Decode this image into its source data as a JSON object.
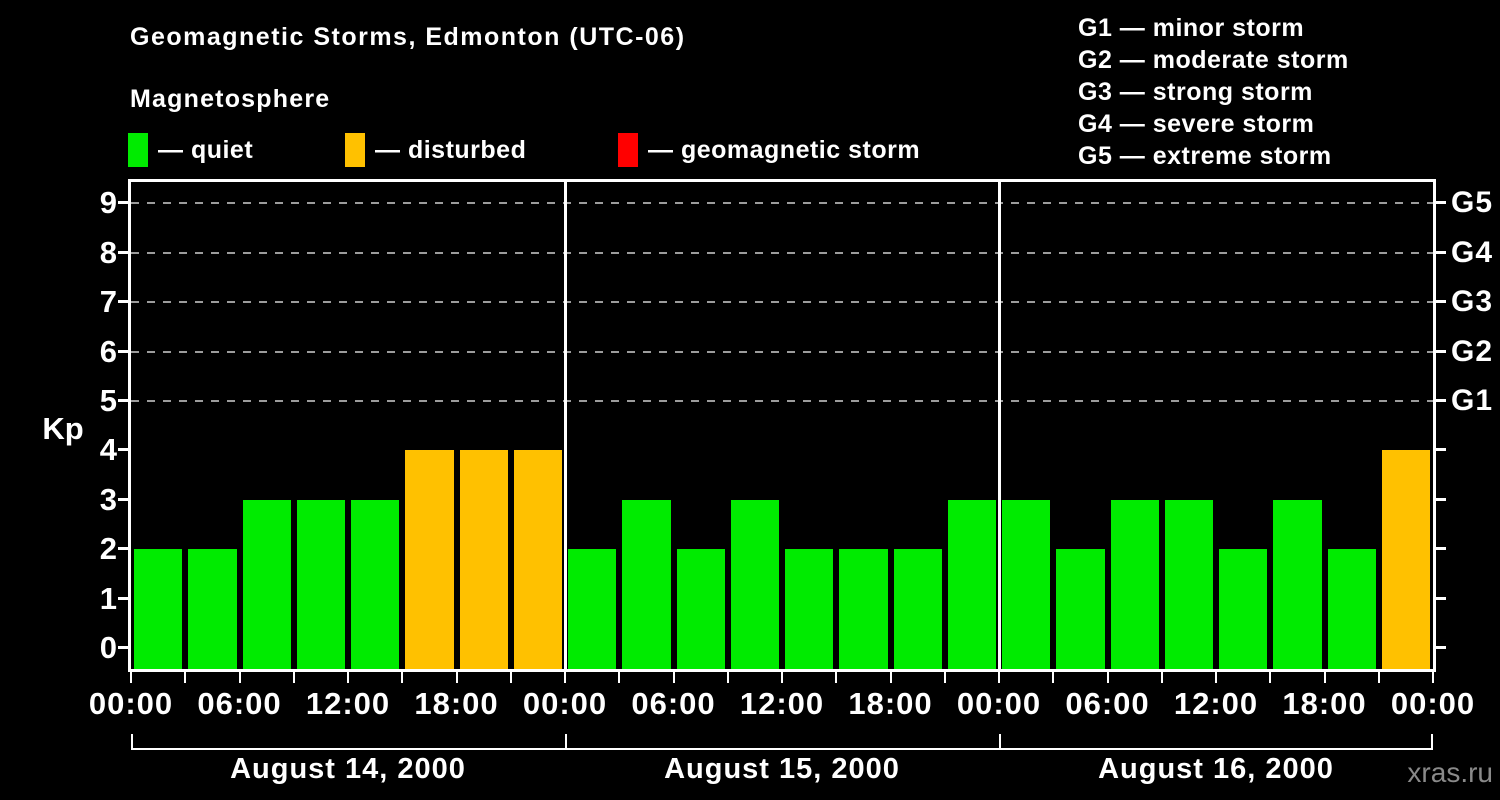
{
  "header": {
    "title": "Geomagnetic Storms, Edmonton (UTC-06)",
    "subtitle": "Magnetosphere"
  },
  "legend": {
    "items": [
      {
        "status": "quiet",
        "color": "#00EB00",
        "label": "— quiet"
      },
      {
        "status": "disturbed",
        "color": "#FFC100",
        "label": "— disturbed"
      },
      {
        "status": "storm",
        "color": "#FF0000",
        "label": "— geomagnetic storm"
      }
    ]
  },
  "g_legend": {
    "lines": [
      "G1 — minor storm",
      "G2 — moderate storm",
      "G3 — strong storm",
      "G4 — severe storm",
      "G5 — extreme storm"
    ]
  },
  "watermark": "xras.ru",
  "chart_data": {
    "type": "bar",
    "title": "Geomagnetic Storms, Edmonton (UTC-06)",
    "subtitle": "Magnetosphere",
    "ylabel": "Kp",
    "ylim": [
      0,
      9
    ],
    "yticks": [
      0,
      1,
      2,
      3,
      4,
      5,
      6,
      7,
      8,
      9
    ],
    "grid_levels": [
      5,
      6,
      7,
      8,
      9
    ],
    "grid_on": true,
    "legend_position": "top",
    "right_axis": [
      {
        "level": 5,
        "label": "G1"
      },
      {
        "level": 6,
        "label": "G2"
      },
      {
        "level": 7,
        "label": "G3"
      },
      {
        "level": 8,
        "label": "G4"
      },
      {
        "level": 9,
        "label": "G5"
      }
    ],
    "hours_per_bar": 3,
    "bars_per_day": 8,
    "x_tick_interval_hours": 3,
    "x_label_interval_hours": 6,
    "x_tick_labels": [
      "00:00",
      "06:00",
      "12:00",
      "18:00",
      "00:00",
      "06:00",
      "12:00",
      "18:00",
      "00:00",
      "06:00",
      "12:00",
      "18:00",
      "00:00"
    ],
    "days": [
      {
        "date": "August 14, 2000",
        "kp": [
          2,
          2,
          3,
          3,
          3,
          4,
          4,
          4
        ],
        "status": [
          "quiet",
          "quiet",
          "quiet",
          "quiet",
          "quiet",
          "disturbed",
          "disturbed",
          "disturbed"
        ]
      },
      {
        "date": "August 15, 2000",
        "kp": [
          2,
          3,
          2,
          3,
          2,
          2,
          2,
          3
        ],
        "status": [
          "quiet",
          "quiet",
          "quiet",
          "quiet",
          "quiet",
          "quiet",
          "quiet",
          "quiet"
        ]
      },
      {
        "date": "August 16, 2000",
        "kp": [
          3,
          2,
          3,
          3,
          2,
          3,
          2,
          4
        ],
        "status": [
          "quiet",
          "quiet",
          "quiet",
          "quiet",
          "quiet",
          "quiet",
          "quiet",
          "disturbed"
        ]
      }
    ],
    "status_colors": {
      "quiet": "#00EB00",
      "disturbed": "#FFC100",
      "storm": "#FF0000"
    }
  }
}
